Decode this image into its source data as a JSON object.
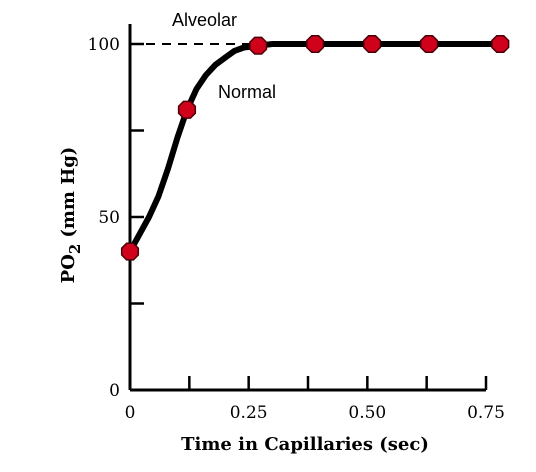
{
  "chart_data": {
    "type": "line",
    "xlabel": "Time in Capillaries (sec)",
    "ylabel_main": "PO",
    "ylabel_sub": "2",
    "ylabel_unit": "(mm Hg)",
    "xlim": [
      0,
      0.8
    ],
    "ylim": [
      0,
      110
    ],
    "x_ticks": [
      0,
      0.125,
      0.25,
      0.375,
      0.5,
      0.625,
      0.75
    ],
    "x_tick_labels": [
      "0",
      "",
      "0.25",
      "",
      "0.50",
      "",
      "0.75"
    ],
    "y_ticks": [
      0,
      25,
      50,
      75,
      100
    ],
    "y_tick_labels": [
      "0",
      "",
      "50",
      "",
      "100"
    ],
    "reference_line": {
      "label": "Alveolar",
      "y": 100,
      "style": "dashed"
    },
    "series": [
      {
        "name": "Normal",
        "curve_x": [
          0.0,
          0.02,
          0.04,
          0.06,
          0.08,
          0.1,
          0.12,
          0.14,
          0.16,
          0.18,
          0.2,
          0.22,
          0.24,
          0.27,
          0.3,
          0.4,
          0.5,
          0.6,
          0.7,
          0.77
        ],
        "curve_y": [
          40,
          45,
          50,
          56,
          64,
          73,
          81,
          87,
          91,
          94,
          96,
          98,
          99,
          99.5,
          100,
          100,
          100,
          100,
          100,
          100
        ],
        "marker_x": [
          0.0,
          0.12,
          0.27,
          0.39,
          0.51,
          0.63,
          0.78
        ],
        "marker_y": [
          40,
          81,
          99.5,
          100,
          100,
          100,
          100
        ]
      }
    ],
    "marker_color": "#d0021b",
    "line_color": "#000000",
    "grid": false
  }
}
